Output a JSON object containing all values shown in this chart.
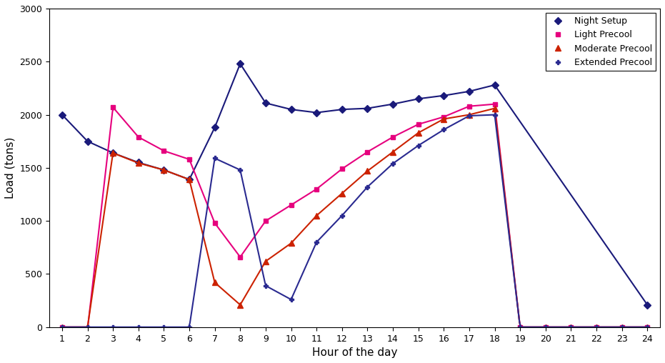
{
  "title": "",
  "xlabel": "Hour of the day",
  "ylabel": "Load (tons)",
  "xlim": [
    0.5,
    24.5
  ],
  "ylim": [
    0,
    3000
  ],
  "yticks": [
    0,
    500,
    1000,
    1500,
    2000,
    2500,
    3000
  ],
  "xticks": [
    1,
    2,
    3,
    4,
    5,
    6,
    7,
    8,
    9,
    10,
    11,
    12,
    13,
    14,
    15,
    16,
    17,
    18,
    19,
    20,
    21,
    22,
    23,
    24
  ],
  "series": [
    {
      "label": "Night Setup",
      "color": "#1a1a7a",
      "marker": "D",
      "markersize": 5,
      "linewidth": 1.5,
      "x": [
        1,
        2,
        3,
        4,
        5,
        6,
        7,
        8,
        9,
        10,
        11,
        12,
        13,
        14,
        15,
        16,
        17,
        18,
        24
      ],
      "y": [
        2000,
        1750,
        1640,
        1550,
        1480,
        1390,
        1880,
        2480,
        2110,
        2050,
        2020,
        2050,
        2060,
        2100,
        2150,
        2180,
        2220,
        2280,
        210
      ]
    },
    {
      "label": "Light Precool",
      "color": "#e6007e",
      "marker": "s",
      "markersize": 5,
      "linewidth": 1.5,
      "x": [
        1,
        2,
        3,
        4,
        5,
        6,
        7,
        8,
        9,
        10,
        11,
        12,
        13,
        14,
        15,
        16,
        17,
        18,
        19,
        20,
        21,
        22,
        23,
        24
      ],
      "y": [
        0,
        -20,
        2070,
        1790,
        1660,
        1580,
        980,
        660,
        1000,
        1150,
        1300,
        1490,
        1650,
        1790,
        1910,
        1980,
        2080,
        2100,
        0,
        0,
        0,
        0,
        0,
        0
      ]
    },
    {
      "label": "Moderate Precool",
      "color": "#cc2200",
      "marker": "^",
      "markersize": 6,
      "linewidth": 1.5,
      "x": [
        1,
        2,
        3,
        4,
        5,
        6,
        7,
        8,
        9,
        10,
        11,
        12,
        13,
        14,
        15,
        16,
        17,
        18,
        19,
        20,
        21,
        22,
        23,
        24
      ],
      "y": [
        0,
        0,
        1640,
        1545,
        1480,
        1390,
        420,
        210,
        620,
        790,
        1050,
        1260,
        1470,
        1650,
        1830,
        1960,
        2000,
        2060,
        0,
        0,
        0,
        0,
        0,
        0
      ]
    },
    {
      "label": "Extended Precool",
      "color": "#2a2a90",
      "marker": "P",
      "markersize": 5,
      "linewidth": 1.5,
      "x": [
        1,
        2,
        3,
        4,
        5,
        6,
        7,
        8,
        9,
        10,
        11,
        12,
        13,
        14,
        15,
        16,
        17,
        18,
        19,
        20,
        21,
        22,
        23,
        24
      ],
      "y": [
        0,
        0,
        0,
        0,
        0,
        0,
        1590,
        1480,
        390,
        260,
        800,
        1050,
        1320,
        1540,
        1710,
        1860,
        1990,
        2000,
        0,
        0,
        0,
        0,
        0,
        0
      ]
    }
  ],
  "legend_loc": "upper right",
  "background_color": "#ffffff"
}
